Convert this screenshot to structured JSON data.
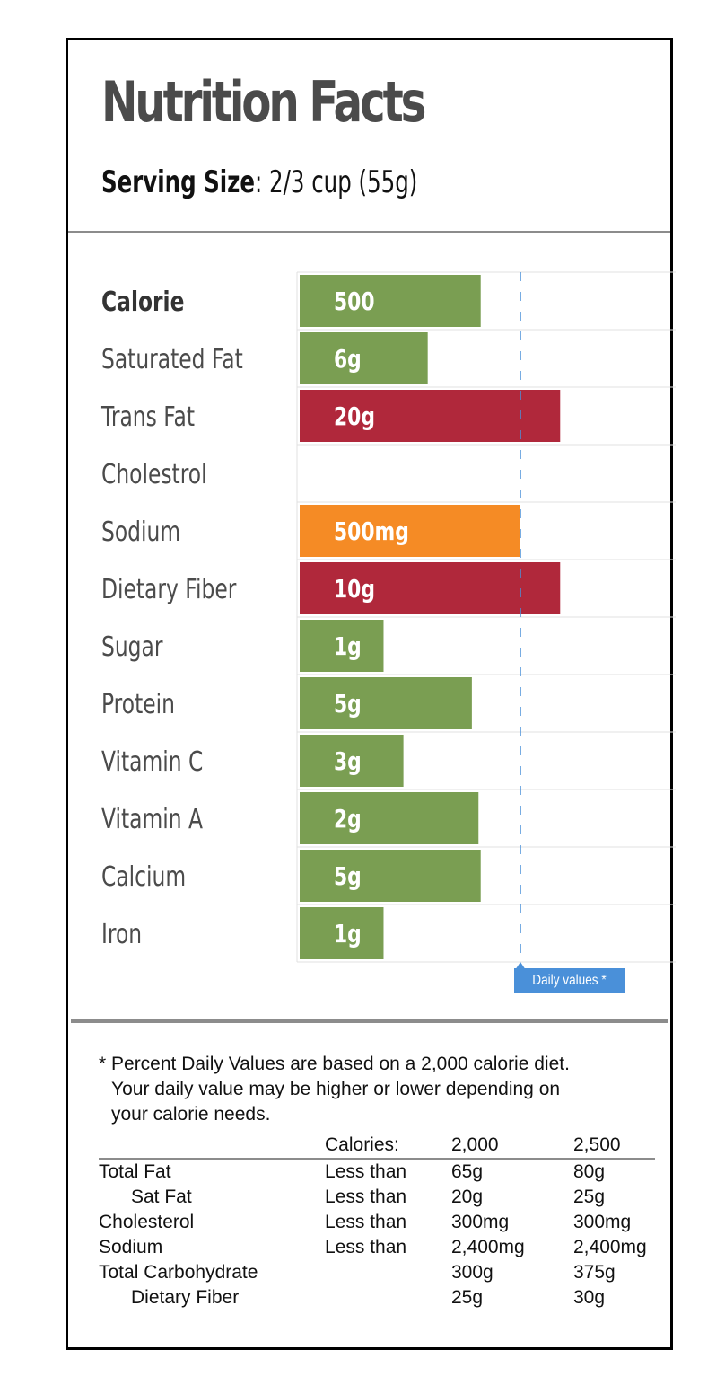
{
  "title": "Nutrition Facts",
  "serving": {
    "label": "Serving Size",
    "value": ": 2/3 cup (55g)"
  },
  "chart_data": {
    "type": "bar",
    "orientation": "horizontal",
    "categories": [
      "Calorie",
      "Saturated Fat",
      "Trans Fat",
      "Cholestrol",
      "Sodium",
      "Dietary Fiber",
      "Sugar",
      "Protein",
      "Vitamin C",
      "Vitamin A",
      "Calcium",
      "Iron"
    ],
    "value_labels": [
      "500",
      "6g",
      "20g",
      "",
      "500mg",
      "10g",
      "1g",
      "5g",
      "3g",
      "2g",
      "5g",
      "1g"
    ],
    "percent_daily_value": [
      82,
      58,
      118,
      0,
      100,
      118,
      38,
      78,
      47,
      81,
      82,
      38
    ],
    "colors": [
      "#7a9e52",
      "#7a9e52",
      "#b0283b",
      "",
      "#f58b25",
      "#b0283b",
      "#7a9e52",
      "#7a9e52",
      "#7a9e52",
      "#7a9e52",
      "#7a9e52",
      "#7a9e52"
    ],
    "reference_line": {
      "value": 100,
      "label": "Daily values *",
      "color": "#4a90d9"
    }
  },
  "footnote": {
    "lines": [
      "* Percent Daily Values are based on a 2,000 calorie diet.",
      "Your daily value may be higher or lower depending on",
      "your calorie needs."
    ]
  },
  "dv_table": {
    "header": [
      "",
      "Calories:",
      "2,000",
      "2,500"
    ],
    "rows": [
      [
        "Total Fat",
        "Less than",
        "65g",
        "80g"
      ],
      [
        "Sat Fat",
        "Less than",
        "20g",
        "25g"
      ],
      [
        "Cholesterol",
        "Less than",
        "300mg",
        "300mg"
      ],
      [
        "Sodium",
        "Less than",
        "2,400mg",
        "2,400mg"
      ],
      [
        "Total Carbohydrate",
        "",
        "300g",
        "375g"
      ],
      [
        "Dietary Fiber",
        "",
        "25g",
        "30g"
      ]
    ]
  }
}
